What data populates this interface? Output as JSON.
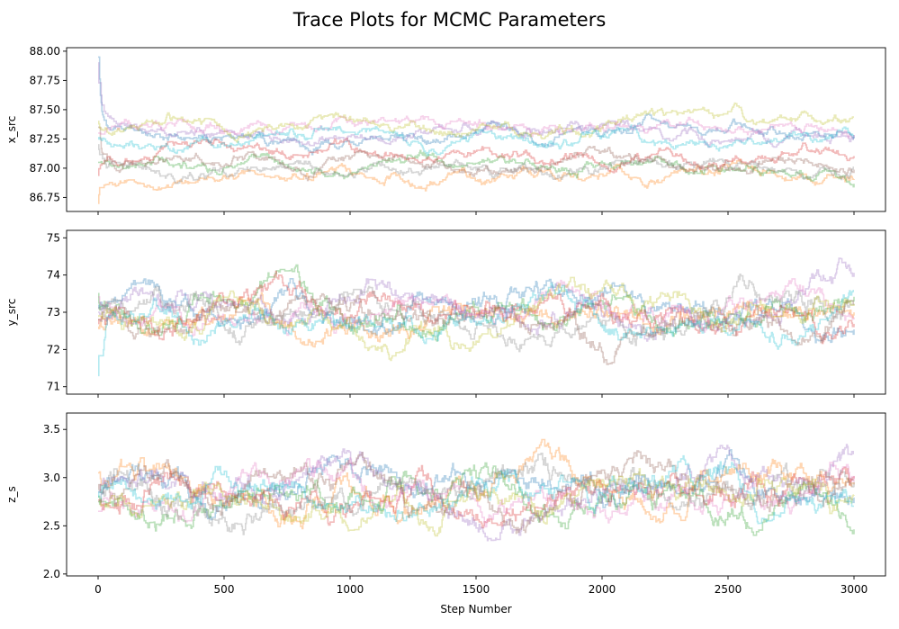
{
  "figure": {
    "title": "Trace Plots for MCMC Parameters"
  },
  "series_colors": [
    "#1f77b4",
    "#ff7f0e",
    "#2ca02c",
    "#d62728",
    "#9467bd",
    "#8c564b",
    "#e377c2",
    "#7f7f7f",
    "#bcbd22",
    "#17becf"
  ],
  "chart_data": [
    {
      "type": "line",
      "title": "",
      "ylabel": "x_src",
      "xlabel": "",
      "xlim": [
        -125,
        3125
      ],
      "ylim": [
        86.63,
        88.03
      ],
      "x_ticks": [
        0,
        500,
        1000,
        1500,
        2000,
        2500,
        3000
      ],
      "y_ticks": [
        86.75,
        87.0,
        87.25,
        87.5,
        87.75,
        88.0
      ],
      "y_tick_labels": [
        "86.75",
        "87.00",
        "87.25",
        "87.50",
        "87.75",
        "88.00"
      ],
      "show_x_tick_labels": false,
      "grid": false,
      "n_walkers": 10,
      "n_steps": 3000,
      "walker_start": [
        87.95,
        86.7,
        87.05,
        86.9,
        87.9,
        87.35,
        87.3,
        87.2,
        87.4,
        87.25
      ],
      "walker_level": [
        87.28,
        86.95,
        87.05,
        87.1,
        87.3,
        87.0,
        87.35,
        86.98,
        87.32,
        87.25
      ],
      "walker_spread": 0.09
    },
    {
      "type": "line",
      "title": "",
      "ylabel": "y_src",
      "xlabel": "",
      "xlim": [
        -125,
        3125
      ],
      "ylim": [
        70.8,
        75.2
      ],
      "x_ticks": [
        0,
        500,
        1000,
        1500,
        2000,
        2500,
        3000
      ],
      "y_ticks": [
        71,
        72,
        73,
        74,
        75
      ],
      "y_tick_labels": [
        "71",
        "72",
        "73",
        "74",
        "75"
      ],
      "show_x_tick_labels": false,
      "grid": false,
      "n_walkers": 10,
      "n_steps": 3000,
      "walker_start": [
        73.2,
        72.6,
        73.5,
        72.8,
        73.0,
        72.9,
        73.6,
        73.1,
        72.7,
        71.3
      ],
      "walker_level": [
        73.0,
        72.9,
        73.1,
        72.95,
        73.05,
        72.9,
        73.0,
        73.1,
        73.0,
        72.9
      ],
      "walker_spread": 0.55
    },
    {
      "type": "line",
      "title": "",
      "ylabel": "z_s",
      "xlabel": "Step Number",
      "xlim": [
        -125,
        3125
      ],
      "ylim": [
        1.98,
        3.67
      ],
      "x_ticks": [
        0,
        500,
        1000,
        1500,
        2000,
        2500,
        3000
      ],
      "x_tick_labels": [
        "0",
        "500",
        "1000",
        "1500",
        "2000",
        "2500",
        "3000"
      ],
      "y_ticks": [
        2.0,
        2.5,
        3.0,
        3.5
      ],
      "y_tick_labels": [
        "2.0",
        "2.5",
        "3.0",
        "3.5"
      ],
      "show_x_tick_labels": true,
      "grid": false,
      "n_walkers": 10,
      "n_steps": 3000,
      "walker_start": [
        2.75,
        3.05,
        2.8,
        2.7,
        2.85,
        2.9,
        2.65,
        2.8,
        2.75,
        2.7
      ],
      "walker_level": [
        2.85,
        2.85,
        2.8,
        2.75,
        2.85,
        2.8,
        2.8,
        2.85,
        2.8,
        2.85
      ],
      "walker_spread": 0.24
    }
  ]
}
